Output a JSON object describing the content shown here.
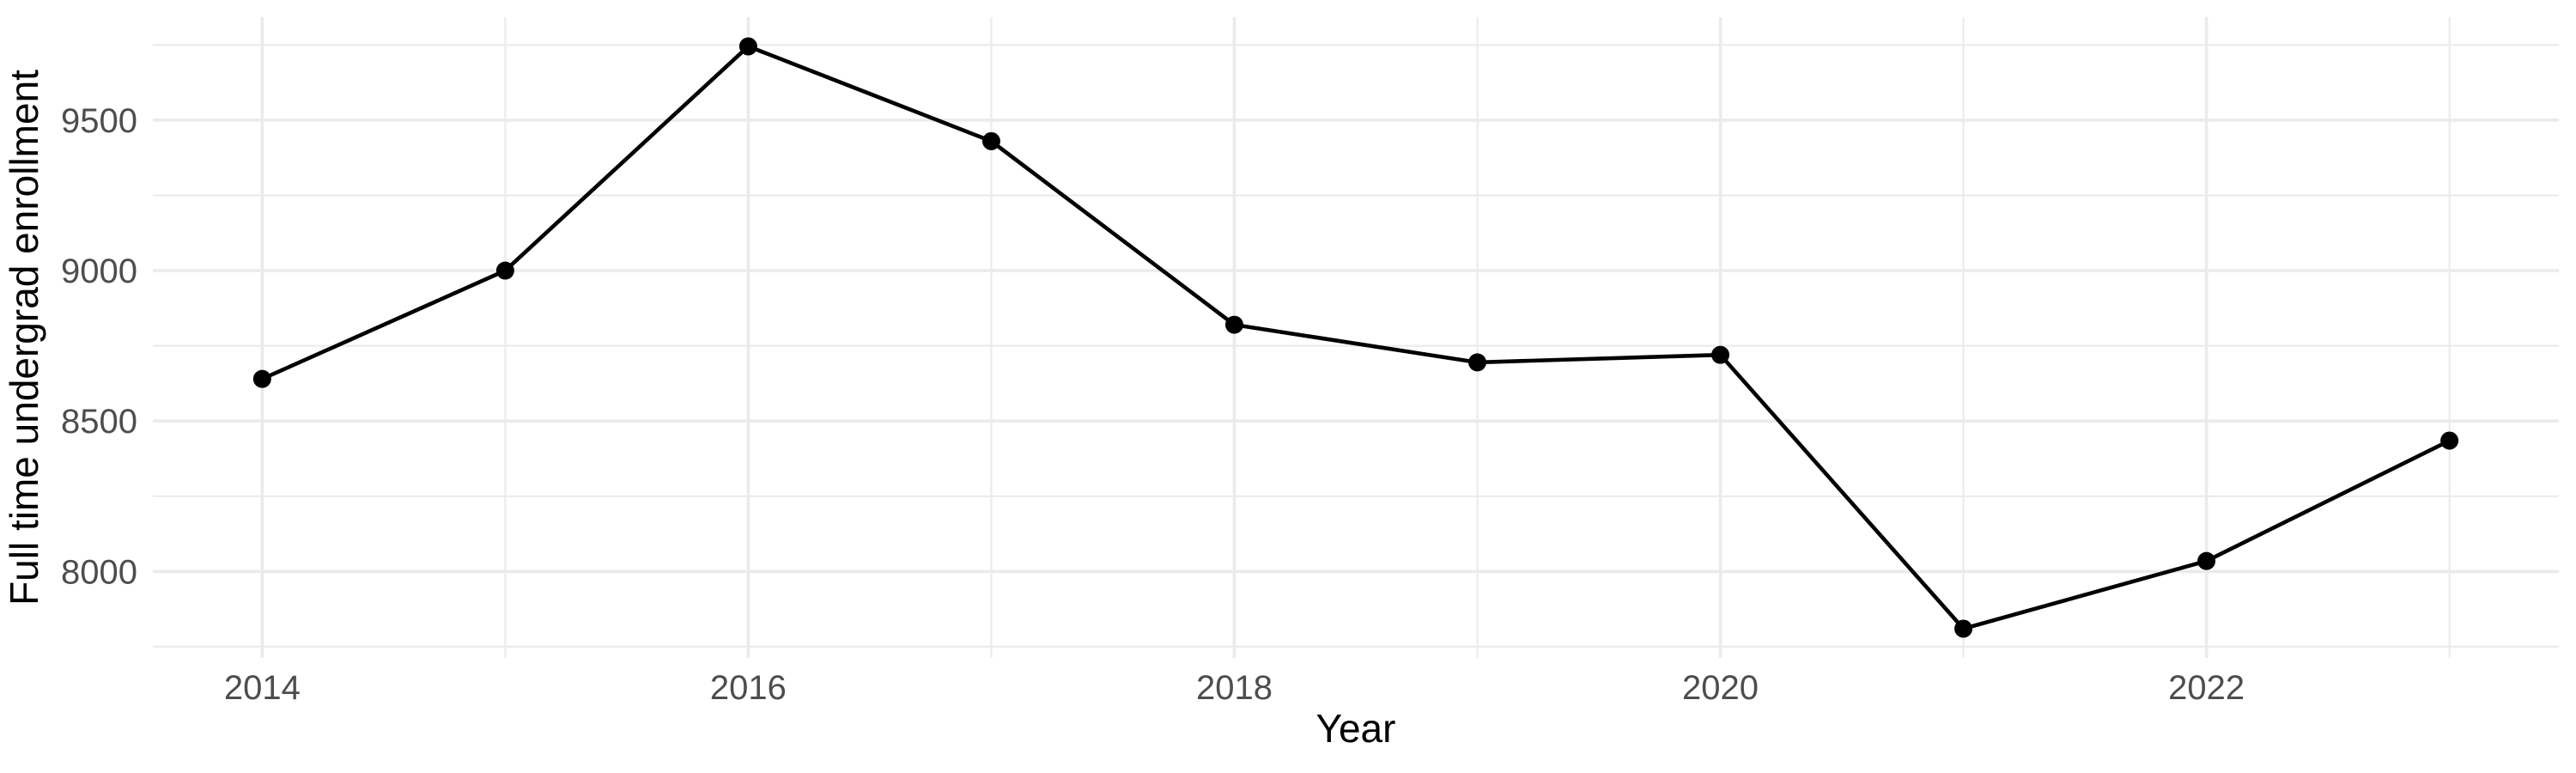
{
  "chart_data": {
    "type": "line",
    "title": "",
    "xlabel": "Year",
    "ylabel": "Full time undergrad enrollment",
    "x": [
      2014,
      2015,
      2016,
      2017,
      2018,
      2019,
      2020,
      2021,
      2022,
      2023
    ],
    "series": [
      {
        "name": "Full time undergrad enrollment",
        "values": [
          8640,
          9000,
          9745,
          9430,
          8820,
          8695,
          8720,
          7810,
          8035,
          8435
        ]
      }
    ],
    "x_ticks_major": [
      2014,
      2016,
      2018,
      2020,
      2022
    ],
    "x_ticks_minor": [
      2015,
      2017,
      2019,
      2021,
      2023
    ],
    "y_ticks_major": [
      8000,
      8500,
      9000,
      9500
    ],
    "y_ticks_minor": [
      7750,
      8250,
      8750,
      9250,
      9750
    ],
    "x_domain": [
      2013.55,
      2023.45
    ],
    "y_domain": [
      7713,
      9842
    ],
    "grid": "on",
    "legend_position": "none",
    "markers": "filled-circle",
    "style": {
      "background": "#ffffff",
      "line_color": "#000000",
      "point_color": "#000000",
      "grid_color": "#ebebeb",
      "tick_label_color": "#4d4d4d",
      "axis_title_color": "#000000"
    }
  }
}
